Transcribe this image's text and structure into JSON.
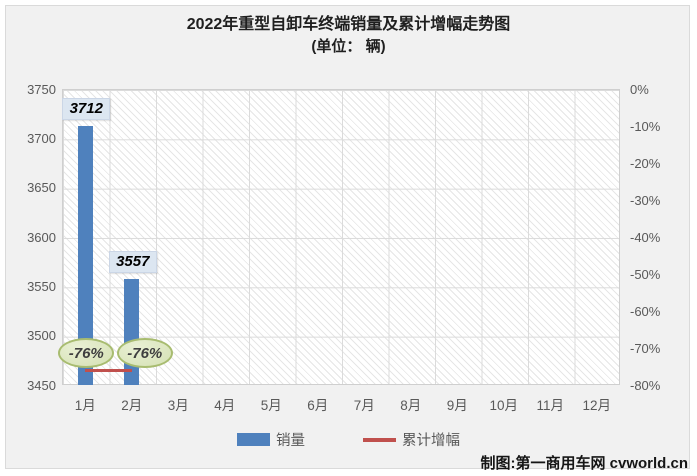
{
  "title": {
    "line1": "2022年重型自卸车终端销量及累计增幅走势图",
    "line2": "(单位： 辆)"
  },
  "chart_data": {
    "type": "bar",
    "title": "2022年重型自卸车终端销量及累计增幅走势图",
    "subtitle": "(单位： 辆)",
    "categories": [
      "1月",
      "2月",
      "3月",
      "4月",
      "5月",
      "6月",
      "7月",
      "8月",
      "9月",
      "10月",
      "11月",
      "12月"
    ],
    "series": [
      {
        "name": "销量",
        "type": "bar",
        "color": "#4F81BD",
        "values": [
          3712,
          3557,
          null,
          null,
          null,
          null,
          null,
          null,
          null,
          null,
          null,
          null
        ],
        "data_labels": [
          "3712",
          "3557"
        ]
      },
      {
        "name": "累计增幅",
        "type": "line",
        "color": "#C0504D",
        "values_pct": [
          -76,
          -76,
          null,
          null,
          null,
          null,
          null,
          null,
          null,
          null,
          null,
          null
        ],
        "data_labels": [
          "-76%",
          "-76%"
        ]
      }
    ],
    "left_axis": {
      "min": 3450,
      "max": 3750,
      "step": 50,
      "ticks": [
        "3750",
        "3700",
        "3650",
        "3600",
        "3550",
        "3500",
        "3450"
      ]
    },
    "right_axis": {
      "min": -80,
      "max": 0,
      "step": 10,
      "ticks": [
        "0%",
        "-10%",
        "-20%",
        "-30%",
        "-40%",
        "-50%",
        "-60%",
        "-70%",
        "-80%"
      ]
    },
    "grid": true,
    "legend_position": "bottom",
    "plot_background": "white-diagonal-hatch"
  },
  "legend": {
    "items": [
      {
        "label": "销量",
        "color": "#4F81BD",
        "swatch": "bar"
      },
      {
        "label": "累计增幅",
        "color": "#C0504D",
        "swatch": "line"
      }
    ]
  },
  "footer": {
    "credit": "制图:第一商用车网 cvworld.cn"
  },
  "colors": {
    "bar": "#4F81BD",
    "line": "#C0504D",
    "value_label_bg": "#DCE6F1",
    "callout_bg": "#D9E5BE",
    "callout_border": "#A8BC70",
    "panel_bg": "#F1F1F1",
    "axis_text": "#595959",
    "gridline": "#DBDBDB"
  }
}
